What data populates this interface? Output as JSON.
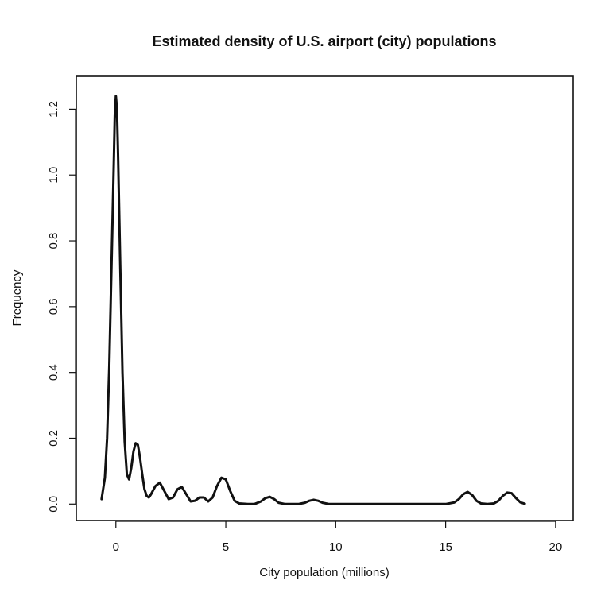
{
  "chart_data": {
    "type": "line",
    "title": "Estimated density of U.S. airport (city) populations",
    "xlabel": "City population (millions)",
    "ylabel": "Frequency",
    "xlim": [
      -1.8,
      20.8
    ],
    "ylim": [
      -0.05,
      1.3
    ],
    "x_ticks": [
      0,
      5,
      10,
      15,
      20
    ],
    "x_tick_labels": [
      "0",
      "5",
      "10",
      "15",
      "20"
    ],
    "y_ticks": [
      0.0,
      0.2,
      0.4,
      0.6,
      0.8,
      1.0,
      1.2
    ],
    "y_tick_labels": [
      "0.0",
      "0.2",
      "0.4",
      "0.6",
      "0.8",
      "1.0",
      "1.2"
    ],
    "grid": false,
    "legend": "none",
    "series": [
      {
        "x": [
          -0.65,
          -0.5,
          -0.4,
          -0.3,
          -0.2,
          -0.1,
          -0.05,
          0.0,
          0.05,
          0.1,
          0.2,
          0.3,
          0.4,
          0.5,
          0.6,
          0.7,
          0.8,
          0.9,
          1.0,
          1.1,
          1.2,
          1.3,
          1.4,
          1.5,
          1.6,
          1.8,
          2.0,
          2.2,
          2.4,
          2.6,
          2.8,
          3.0,
          3.2,
          3.4,
          3.6,
          3.8,
          4.0,
          4.2,
          4.4,
          4.6,
          4.8,
          5.0,
          5.2,
          5.4,
          5.6,
          5.8,
          6.0,
          6.3,
          6.6,
          6.8,
          7.0,
          7.2,
          7.4,
          7.7,
          8.0,
          8.3,
          8.6,
          8.8,
          9.0,
          9.2,
          9.4,
          9.7,
          10.0,
          11.0,
          12.0,
          13.0,
          14.0,
          15.0,
          15.4,
          15.6,
          15.8,
          16.0,
          16.2,
          16.4,
          16.6,
          16.9,
          17.2,
          17.4,
          17.6,
          17.8,
          18.0,
          18.2,
          18.4,
          18.6
        ],
        "y": [
          0.015,
          0.08,
          0.2,
          0.42,
          0.72,
          1.02,
          1.18,
          1.24,
          1.2,
          1.06,
          0.72,
          0.4,
          0.19,
          0.09,
          0.075,
          0.11,
          0.16,
          0.185,
          0.18,
          0.14,
          0.09,
          0.045,
          0.025,
          0.02,
          0.03,
          0.055,
          0.065,
          0.04,
          0.015,
          0.02,
          0.045,
          0.052,
          0.03,
          0.008,
          0.01,
          0.02,
          0.02,
          0.008,
          0.02,
          0.055,
          0.08,
          0.075,
          0.04,
          0.01,
          0.002,
          0.001,
          0.0,
          0.0,
          0.008,
          0.018,
          0.022,
          0.015,
          0.004,
          0.0,
          0.0,
          0.0,
          0.004,
          0.01,
          0.013,
          0.01,
          0.004,
          0.0,
          0.0,
          0.0,
          0.0,
          0.0,
          0.0,
          0.0,
          0.005,
          0.015,
          0.03,
          0.037,
          0.028,
          0.01,
          0.002,
          0.0,
          0.002,
          0.01,
          0.025,
          0.035,
          0.033,
          0.018,
          0.005,
          0.001
        ]
      }
    ]
  }
}
